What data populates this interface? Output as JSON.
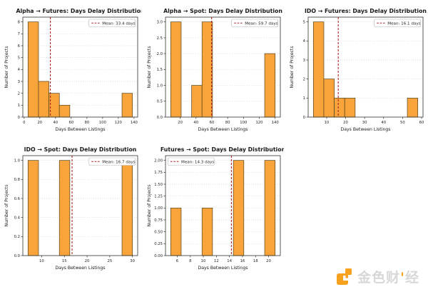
{
  "page": {
    "background": "#ffffff"
  },
  "style": {
    "bar_fill": "#F9A43B",
    "bar_edge": "#53431f",
    "mean_line_color": "#B22222",
    "grid_color": "#d4d4d4",
    "axis_color": "#333333",
    "title_color": "#1a1a1a",
    "tick_color": "#262626",
    "legend_border": "#b8b8b8"
  },
  "watermark": {
    "text_part1": "金色财",
    "accent": "'",
    "text_part2": "经",
    "logo_color": "#F6A21F"
  },
  "chart_data": [
    {
      "type": "bar",
      "title": "Alpha → Futures: Days Delay Distribution",
      "xlabel": "Days Between Listings",
      "ylabel": "Number of Projects",
      "legend": "Mean: 33.4 days",
      "legend_position": "top-right",
      "mean": 33.4,
      "xlim": [
        -1.65,
        144.65
      ],
      "ylim": [
        0,
        8.4
      ],
      "xticks": [
        0,
        20,
        40,
        60,
        80,
        100,
        120,
        140
      ],
      "yticks": [
        0,
        1,
        2,
        3,
        4,
        5,
        6,
        7,
        8
      ],
      "ytick_decimals": 0,
      "grid": "y-dotted",
      "bins": [
        {
          "x0": 5,
          "x1": 18.3,
          "count": 8
        },
        {
          "x0": 18.3,
          "x1": 31.6,
          "count": 3
        },
        {
          "x0": 31.6,
          "x1": 44.9,
          "count": 2
        },
        {
          "x0": 44.9,
          "x1": 58.2,
          "count": 1
        },
        {
          "x0": 124.7,
          "x1": 138,
          "count": 2
        }
      ]
    },
    {
      "type": "bar",
      "title": "Alpha → Spot: Days Delay Distribution",
      "xlabel": "Days Between Listings",
      "ylabel": "Number of Projects",
      "legend": "Mean: 59.7 days",
      "legend_position": "top-right",
      "mean": 59.7,
      "xlim": [
        1.4,
        146.6
      ],
      "ylim": [
        0,
        3.15
      ],
      "xticks": [
        20,
        40,
        60,
        80,
        100,
        120,
        140
      ],
      "yticks": [
        0,
        0.5,
        1,
        1.5,
        2,
        2.5,
        3
      ],
      "ytick_decimals": 1,
      "grid": "y-dotted",
      "bins": [
        {
          "x0": 8,
          "x1": 21.2,
          "count": 3
        },
        {
          "x0": 34.4,
          "x1": 47.6,
          "count": 1
        },
        {
          "x0": 47.6,
          "x1": 60.8,
          "count": 3
        },
        {
          "x0": 126.8,
          "x1": 140,
          "count": 2
        }
      ]
    },
    {
      "type": "bar",
      "title": "IDO → Futures: Days Delay Distribution",
      "xlabel": "Days Between Listings",
      "ylabel": "Number of Projects",
      "legend": "Mean: 16.1 days",
      "legend_position": "top-right",
      "mean": 16.1,
      "xlim": [
        0.25,
        60.75
      ],
      "ylim": [
        0,
        5.25
      ],
      "xticks": [
        10,
        20,
        30,
        40,
        50,
        60
      ],
      "yticks": [
        0,
        1,
        2,
        3,
        4,
        5
      ],
      "ytick_decimals": 0,
      "grid": "y-dotted",
      "bins": [
        {
          "x0": 3,
          "x1": 8.5,
          "count": 5
        },
        {
          "x0": 8.5,
          "x1": 14,
          "count": 2
        },
        {
          "x0": 14,
          "x1": 19.5,
          "count": 1
        },
        {
          "x0": 19.5,
          "x1": 25,
          "count": 1
        },
        {
          "x0": 52.5,
          "x1": 58,
          "count": 1
        }
      ]
    },
    {
      "type": "bar",
      "title": "IDO → Spot: Days Delay Distribution",
      "xlabel": "Days Between Listings",
      "ylabel": "Number of Projects",
      "legend": "Mean: 16.7 days",
      "legend_position": "top-right",
      "mean": 16.7,
      "xlim": [
        5.85,
        31.15
      ],
      "ylim": [
        0,
        1.05
      ],
      "xticks": [
        10,
        15,
        20,
        25,
        30
      ],
      "yticks": [
        0,
        0.2,
        0.4,
        0.6,
        0.8,
        1.0
      ],
      "ytick_decimals": 1,
      "grid": "y-dotted",
      "bins": [
        {
          "x0": 7,
          "x1": 9.3,
          "count": 1
        },
        {
          "x0": 13.9,
          "x1": 16.2,
          "count": 1
        },
        {
          "x0": 27.7,
          "x1": 30,
          "count": 1
        }
      ]
    },
    {
      "type": "bar",
      "title": "Futures → Spot: Days Delay Distribution",
      "xlabel": "Days Between Listings",
      "ylabel": "Number of Projects",
      "legend": "Mean: 14.3 days",
      "legend_position": "top-left",
      "mean": 14.3,
      "xlim": [
        4.2,
        21.8
      ],
      "ylim": [
        0,
        2.1
      ],
      "xticks": [
        6,
        8,
        10,
        12,
        14,
        16,
        18,
        20
      ],
      "yticks": [
        0,
        0.25,
        0.5,
        0.75,
        1,
        1.25,
        1.5,
        1.75,
        2
      ],
      "ytick_decimals": 2,
      "grid": "y-dotted",
      "bins": [
        {
          "x0": 5,
          "x1": 6.6,
          "count": 1
        },
        {
          "x0": 9.8,
          "x1": 11.4,
          "count": 1
        },
        {
          "x0": 14.6,
          "x1": 16.2,
          "count": 2
        },
        {
          "x0": 19.4,
          "x1": 21,
          "count": 2
        }
      ]
    }
  ]
}
